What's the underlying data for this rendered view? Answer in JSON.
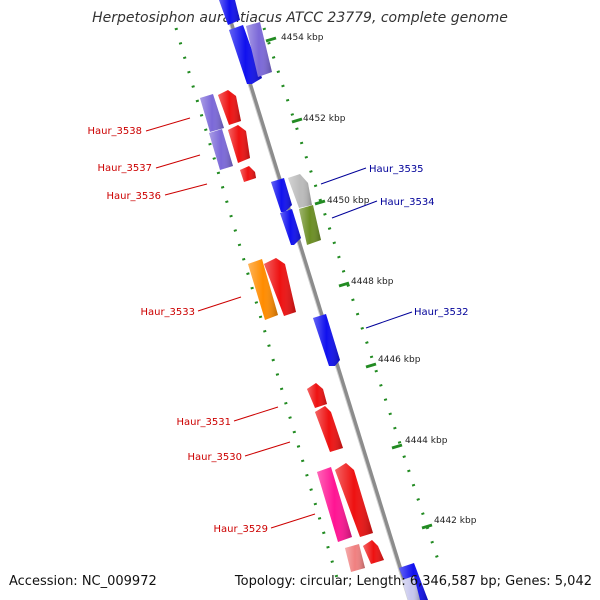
{
  "title": "Herpetosiphon aurantiacus ATCC 23779, complete genome",
  "accession": "Accession: NC_009972",
  "topology": "Topology: circular; Length: 6,346,587 bp; Genes: 5,042",
  "colors": {
    "backbone": "#8c8c8c",
    "tick": "#228b22",
    "blue": "#1010ee",
    "red": "#ee1111",
    "purple": "#7b68d8",
    "orange": "#ff8c00",
    "gray": "#bbbbbb",
    "olive": "#6b8e23",
    "pink": "#ff1493",
    "salmon": "#f08080",
    "label_red": "#cc0000",
    "label_blue": "#000099"
  },
  "scale_labels": [
    "4454 kbp",
    "4452 kbp",
    "4450 kbp",
    "4448 kbp",
    "4446 kbp",
    "4444 kbp",
    "4442 kbp"
  ],
  "gene_labels": [
    {
      "text": "Haur_3538",
      "side": "left"
    },
    {
      "text": "Haur_3537",
      "side": "left"
    },
    {
      "text": "Haur_3536",
      "side": "left"
    },
    {
      "text": "Haur_3535",
      "side": "right"
    },
    {
      "text": "Haur_3534",
      "side": "right"
    },
    {
      "text": "Haur_3533",
      "side": "left"
    },
    {
      "text": "Haur_3532",
      "side": "right"
    },
    {
      "text": "Haur_3531",
      "side": "left"
    },
    {
      "text": "Haur_3530",
      "side": "left"
    },
    {
      "text": "Haur_3529",
      "side": "left"
    }
  ]
}
